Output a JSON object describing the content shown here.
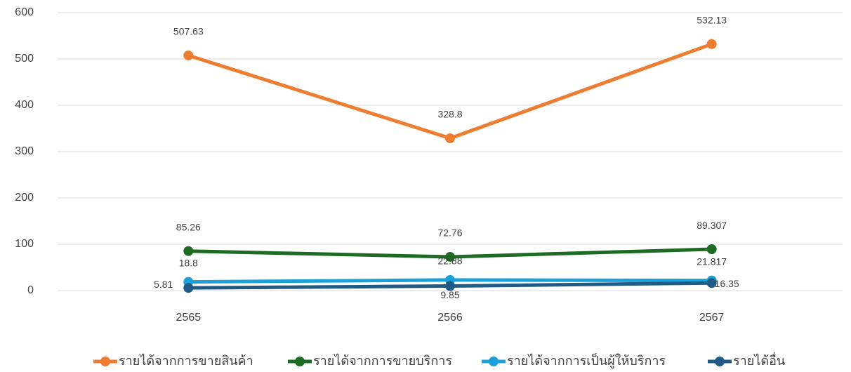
{
  "chart_data": {
    "type": "line",
    "categories": [
      "2565",
      "2566",
      "2567"
    ],
    "series": [
      {
        "name": "รายได้จากการขายสินค้า",
        "color": "#ed7d31",
        "values": [
          507.63,
          328.8,
          532.13
        ]
      },
      {
        "name": "รายได้จากการขายบริการ",
        "color": "#1e6b24",
        "values": [
          85.26,
          72.76,
          89.307
        ]
      },
      {
        "name": "รายได้จากการเป็นผู้ให้บริการ",
        "color": "#1ba1d8",
        "values": [
          18.8,
          22.88,
          21.817
        ]
      },
      {
        "name": "รายได้อื่น",
        "color": "#1f5b85",
        "values": [
          5.81,
          9.85,
          16.35
        ]
      }
    ],
    "ylim": [
      0,
      600
    ],
    "yticks": [
      0,
      100,
      200,
      300,
      400,
      500,
      600
    ],
    "grid": true,
    "legend": "bottom"
  }
}
